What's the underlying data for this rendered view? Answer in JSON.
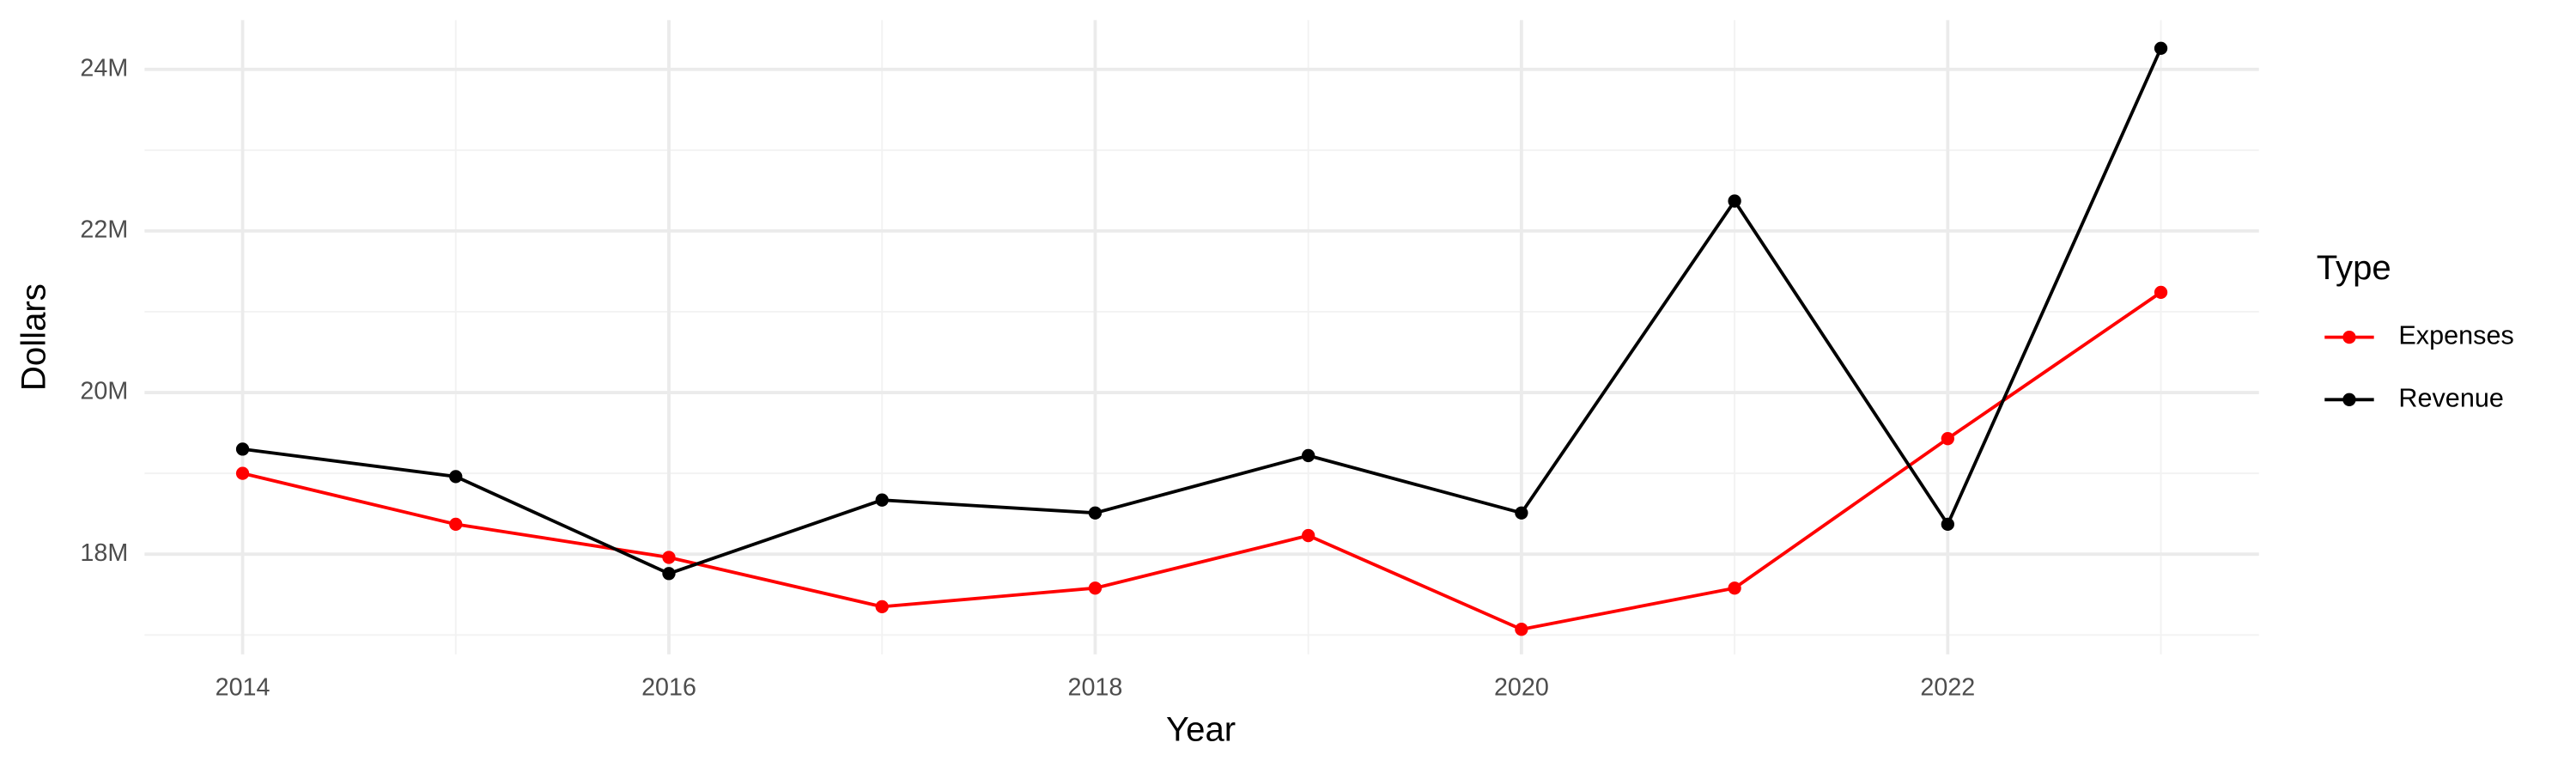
{
  "chart_data": {
    "type": "line",
    "x_label": "Year",
    "y_label": "Dollars",
    "legend_title": "Type",
    "x": [
      2014,
      2015,
      2016,
      2017,
      2018,
      2019,
      2020,
      2021,
      2022,
      2023
    ],
    "series": [
      {
        "name": "Expenses",
        "color": "#ff0000",
        "values": [
          19000000,
          18370000,
          17960000,
          17350000,
          17580000,
          18230000,
          17070000,
          17580000,
          19430000,
          21240000
        ]
      },
      {
        "name": "Revenue",
        "color": "#000000",
        "values": [
          19300000,
          18960000,
          17760000,
          18670000,
          18510000,
          19220000,
          18510000,
          22370000,
          18370000,
          24260000
        ]
      }
    ],
    "xlim": [
      2013.54,
      2023.46
    ],
    "xticks": [
      2014,
      2016,
      2018,
      2020,
      2022
    ],
    "ylim": [
      16760000,
      24610000
    ],
    "yticks": [
      {
        "value": 18000000,
        "label": "18M"
      },
      {
        "value": 20000000,
        "label": "20M"
      },
      {
        "value": 22000000,
        "label": "22M"
      },
      {
        "value": 24000000,
        "label": "24M"
      }
    ],
    "grid": true,
    "legend": "right"
  }
}
